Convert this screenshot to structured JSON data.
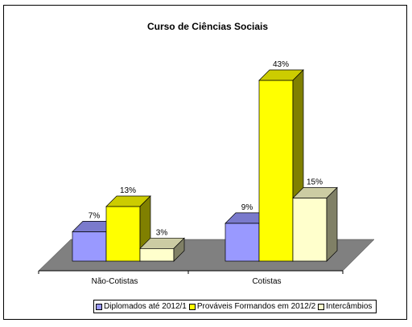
{
  "chart_data": {
    "type": "bar",
    "title": "Curso de Ciências Sociais",
    "categories": [
      "Não-Cotistas",
      "Cotistas"
    ],
    "series": [
      {
        "name": "Diplomados até 2012/1",
        "values": [
          7,
          9
        ],
        "labels": [
          "7%",
          "9%"
        ],
        "color": "#9999ff"
      },
      {
        "name": "Prováveis Formandos em 2012/2",
        "values": [
          13,
          43
        ],
        "labels": [
          "13%",
          "43%"
        ],
        "color": "#ffff00"
      },
      {
        "name": "Intercâmbios",
        "values": [
          3,
          15
        ],
        "labels": [
          "3%",
          "15%"
        ],
        "color": "#ffffcc"
      }
    ],
    "ylim": [
      0,
      43
    ],
    "legend_position": "bottom",
    "grid": false,
    "floor_color": "#808080"
  }
}
